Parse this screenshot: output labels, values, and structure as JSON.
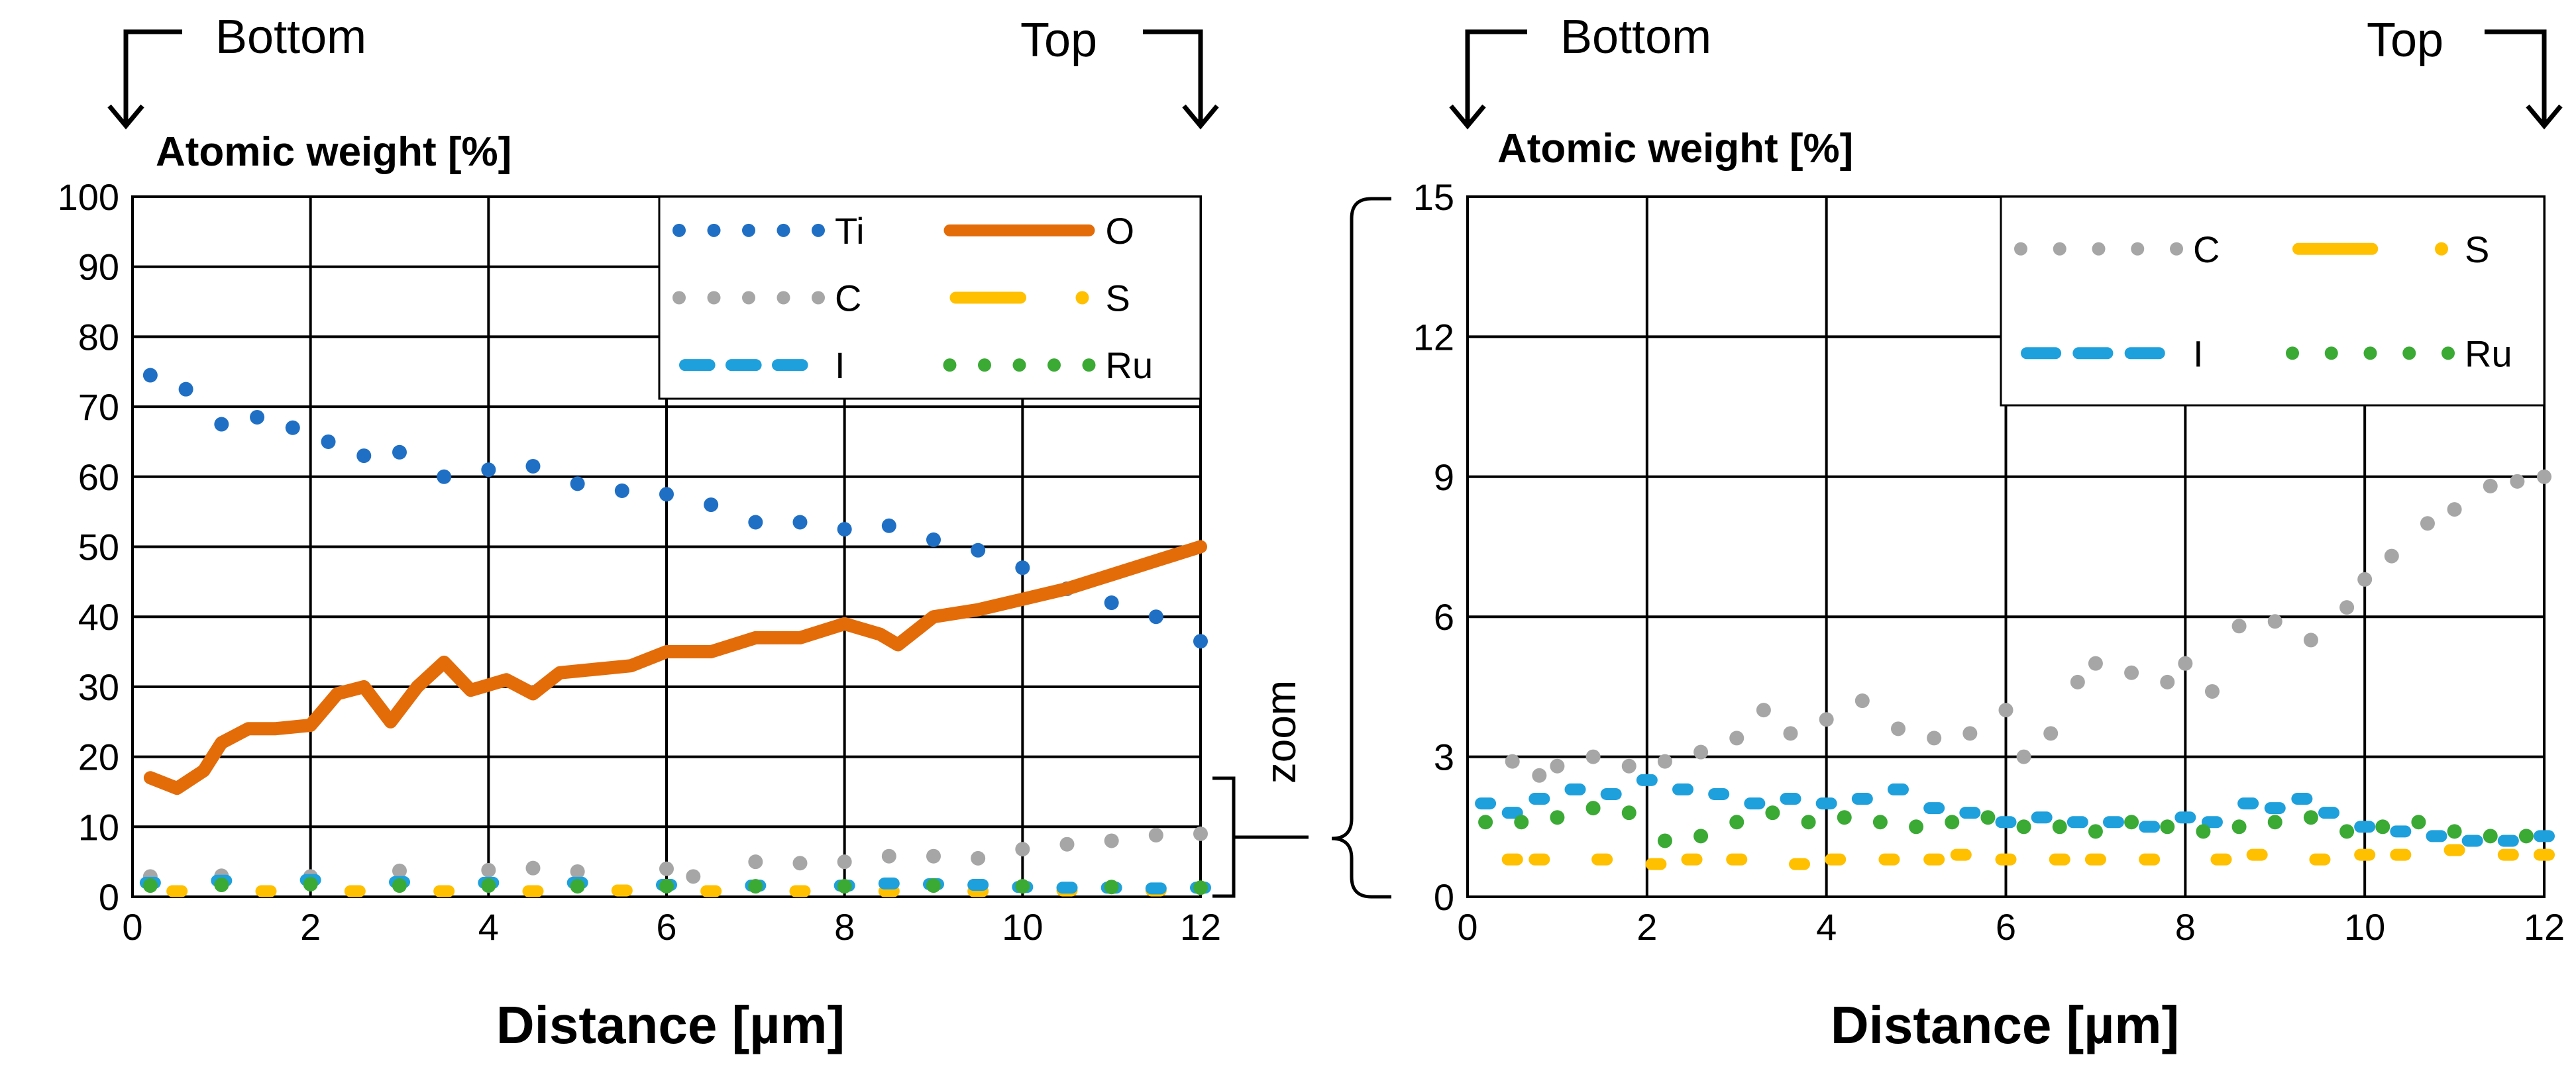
{
  "chart_data": [
    {
      "type": "scatter",
      "title": "",
      "xlabel": "Distance [µm]",
      "ylabel": "Atomic weight [%]",
      "xlim": [
        0,
        12
      ],
      "ylim": [
        0,
        100
      ],
      "x_ticks": [
        "0",
        "2",
        "4",
        "6",
        "8",
        "10",
        "12"
      ],
      "y_ticks": [
        "0",
        "10",
        "20",
        "30",
        "40",
        "50",
        "60",
        "70",
        "80",
        "90",
        "100"
      ],
      "grid": true,
      "legend_position": "top-right",
      "direction_labels": {
        "left": "Bottom",
        "right": "Top"
      },
      "zoom_label": "zoom",
      "series": [
        {
          "name": "Ti",
          "color": "#1f6fc5",
          "style": "dots",
          "points": [
            [
              0.2,
              74.5
            ],
            [
              0.6,
              72.5
            ],
            [
              1.0,
              67.5
            ],
            [
              1.4,
              68.5
            ],
            [
              1.8,
              67
            ],
            [
              2.2,
              65
            ],
            [
              2.6,
              63
            ],
            [
              3.0,
              63.5
            ],
            [
              3.5,
              60
            ],
            [
              4.0,
              61
            ],
            [
              4.5,
              61.5
            ],
            [
              5.0,
              59
            ],
            [
              5.5,
              58
            ],
            [
              6.0,
              57.5
            ],
            [
              6.5,
              56
            ],
            [
              7.0,
              53.5
            ],
            [
              7.5,
              53.5
            ],
            [
              8.0,
              52.5
            ],
            [
              8.5,
              53
            ],
            [
              9.0,
              51
            ],
            [
              9.5,
              49.5
            ],
            [
              10.0,
              47
            ],
            [
              10.5,
              44
            ],
            [
              11.0,
              42
            ],
            [
              11.5,
              40
            ],
            [
              12.0,
              36.5
            ]
          ]
        },
        {
          "name": "O",
          "color": "#e36c09",
          "style": "line",
          "points": [
            [
              0.2,
              17
            ],
            [
              0.5,
              15.5
            ],
            [
              0.8,
              18
            ],
            [
              1.0,
              22
            ],
            [
              1.3,
              24
            ],
            [
              1.6,
              24
            ],
            [
              2.0,
              24.5
            ],
            [
              2.3,
              29
            ],
            [
              2.6,
              30
            ],
            [
              2.9,
              25
            ],
            [
              3.2,
              30
            ],
            [
              3.5,
              33.5
            ],
            [
              3.8,
              29.5
            ],
            [
              4.2,
              31
            ],
            [
              4.5,
              29
            ],
            [
              4.8,
              32
            ],
            [
              5.2,
              32.5
            ],
            [
              5.6,
              33
            ],
            [
              6.0,
              35
            ],
            [
              6.5,
              35
            ],
            [
              7.0,
              37
            ],
            [
              7.5,
              37
            ],
            [
              8.0,
              39
            ],
            [
              8.4,
              37.5
            ],
            [
              8.6,
              36
            ],
            [
              9.0,
              40
            ],
            [
              9.5,
              41
            ],
            [
              10.0,
              42.5
            ],
            [
              10.5,
              44
            ],
            [
              11.0,
              46
            ],
            [
              11.5,
              48
            ],
            [
              12.0,
              50
            ]
          ]
        },
        {
          "name": "C",
          "color": "#a6a6a6",
          "style": "dots",
          "points": [
            [
              0.2,
              2.9
            ],
            [
              1.0,
              3
            ],
            [
              2.0,
              2.9
            ],
            [
              3.0,
              3.7
            ],
            [
              4.0,
              3.8
            ],
            [
              4.5,
              4.1
            ],
            [
              5.0,
              3.6
            ],
            [
              6.0,
              4
            ],
            [
              6.3,
              2.9
            ],
            [
              7.0,
              5
            ],
            [
              7.5,
              4.8
            ],
            [
              8.0,
              5
            ],
            [
              8.5,
              5.8
            ],
            [
              9.0,
              5.8
            ],
            [
              9.5,
              5.5
            ],
            [
              10.0,
              6.8
            ],
            [
              10.5,
              7.5
            ],
            [
              11.0,
              8
            ],
            [
              11.5,
              8.8
            ],
            [
              12.0,
              9
            ]
          ]
        },
        {
          "name": "S",
          "color": "#ffc000",
          "style": "dash-dot",
          "points": [
            [
              0.5,
              0.8
            ],
            [
              1.5,
              0.8
            ],
            [
              2.5,
              0.8
            ],
            [
              3.5,
              0.8
            ],
            [
              4.5,
              0.8
            ],
            [
              5.5,
              0.9
            ],
            [
              6.5,
              0.8
            ],
            [
              7.5,
              0.8
            ],
            [
              8.5,
              0.8
            ],
            [
              9.5,
              0.8
            ],
            [
              10.5,
              0.9
            ],
            [
              11.5,
              0.9
            ]
          ]
        },
        {
          "name": "I",
          "color": "#1ea0dc",
          "style": "dashed",
          "points": [
            [
              0.2,
              2
            ],
            [
              1.0,
              2.3
            ],
            [
              2.0,
              2.4
            ],
            [
              3.0,
              2.1
            ],
            [
              4.0,
              2
            ],
            [
              5.0,
              2
            ],
            [
              6.0,
              1.7
            ],
            [
              7.0,
              1.6
            ],
            [
              8.0,
              1.6
            ],
            [
              8.5,
              1.9
            ],
            [
              9.0,
              1.8
            ],
            [
              9.5,
              1.7
            ],
            [
              10.0,
              1.4
            ],
            [
              10.5,
              1.3
            ],
            [
              11.0,
              1.3
            ],
            [
              11.5,
              1.2
            ],
            [
              12.0,
              1.3
            ]
          ]
        },
        {
          "name": "Ru",
          "color": "#3aaa35",
          "style": "dots",
          "points": [
            [
              0.2,
              1.6
            ],
            [
              1.0,
              1.7
            ],
            [
              2.0,
              1.8
            ],
            [
              3.0,
              1.6
            ],
            [
              4.0,
              1.6
            ],
            [
              5.0,
              1.5
            ],
            [
              6.0,
              1.5
            ],
            [
              7.0,
              1.5
            ],
            [
              8.0,
              1.5
            ],
            [
              9.0,
              1.6
            ],
            [
              10.0,
              1.5
            ],
            [
              11.0,
              1.4
            ],
            [
              12.0,
              1.3
            ]
          ]
        }
      ]
    },
    {
      "type": "scatter",
      "title": "",
      "xlabel": "Distance [µm]",
      "ylabel": "Atomic weight [%]",
      "xlim": [
        0,
        12
      ],
      "ylim": [
        0,
        15
      ],
      "x_ticks": [
        "0",
        "2",
        "4",
        "6",
        "8",
        "10",
        "12"
      ],
      "y_ticks": [
        "0",
        "3",
        "6",
        "9",
        "12",
        "15"
      ],
      "grid": true,
      "legend_position": "top-right",
      "direction_labels": {
        "left": "Bottom",
        "right": "Top"
      },
      "series": [
        {
          "name": "C",
          "color": "#a6a6a6",
          "style": "dots",
          "points": [
            [
              0.5,
              2.9
            ],
            [
              0.8,
              2.6
            ],
            [
              1.0,
              2.8
            ],
            [
              1.4,
              3
            ],
            [
              1.8,
              2.8
            ],
            [
              2.2,
              2.9
            ],
            [
              2.6,
              3.1
            ],
            [
              3.0,
              3.4
            ],
            [
              3.3,
              4
            ],
            [
              3.6,
              3.5
            ],
            [
              4.0,
              3.8
            ],
            [
              4.4,
              4.2
            ],
            [
              4.8,
              3.6
            ],
            [
              5.2,
              3.4
            ],
            [
              5.6,
              3.5
            ],
            [
              6.0,
              4
            ],
            [
              6.2,
              3
            ],
            [
              6.5,
              3.5
            ],
            [
              6.8,
              4.6
            ],
            [
              7.0,
              5
            ],
            [
              7.4,
              4.8
            ],
            [
              7.8,
              4.6
            ],
            [
              8.0,
              5
            ],
            [
              8.3,
              4.4
            ],
            [
              8.6,
              5.8
            ],
            [
              9.0,
              5.9
            ],
            [
              9.4,
              5.5
            ],
            [
              9.8,
              6.2
            ],
            [
              10.0,
              6.8
            ],
            [
              10.3,
              7.3
            ],
            [
              10.7,
              8
            ],
            [
              11.0,
              8.3
            ],
            [
              11.4,
              8.8
            ],
            [
              11.7,
              8.9
            ],
            [
              12.0,
              9
            ]
          ]
        },
        {
          "name": "S",
          "color": "#ffc000",
          "style": "dash-dot",
          "points": [
            [
              0.5,
              0.8
            ],
            [
              0.8,
              0.8
            ],
            [
              1.5,
              0.8
            ],
            [
              2.1,
              0.7
            ],
            [
              2.5,
              0.8
            ],
            [
              3.0,
              0.8
            ],
            [
              3.7,
              0.7
            ],
            [
              4.1,
              0.8
            ],
            [
              4.7,
              0.8
            ],
            [
              5.2,
              0.8
            ],
            [
              5.5,
              0.9
            ],
            [
              6.0,
              0.8
            ],
            [
              6.6,
              0.8
            ],
            [
              7.0,
              0.8
            ],
            [
              7.6,
              0.8
            ],
            [
              8.4,
              0.8
            ],
            [
              8.8,
              0.9
            ],
            [
              9.5,
              0.8
            ],
            [
              10.0,
              0.9
            ],
            [
              10.4,
              0.9
            ],
            [
              11.0,
              1
            ],
            [
              11.6,
              0.9
            ],
            [
              12.0,
              0.9
            ]
          ]
        },
        {
          "name": "I",
          "color": "#1ea0dc",
          "style": "dashed",
          "points": [
            [
              0.2,
              2
            ],
            [
              0.5,
              1.8
            ],
            [
              0.8,
              2.1
            ],
            [
              1.2,
              2.3
            ],
            [
              1.6,
              2.2
            ],
            [
              2.0,
              2.5
            ],
            [
              2.4,
              2.3
            ],
            [
              2.8,
              2.2
            ],
            [
              3.2,
              2
            ],
            [
              3.6,
              2.1
            ],
            [
              4.0,
              2
            ],
            [
              4.4,
              2.1
            ],
            [
              4.8,
              2.3
            ],
            [
              5.2,
              1.9
            ],
            [
              5.6,
              1.8
            ],
            [
              6.0,
              1.6
            ],
            [
              6.4,
              1.7
            ],
            [
              6.8,
              1.6
            ],
            [
              7.2,
              1.6
            ],
            [
              7.6,
              1.5
            ],
            [
              8.0,
              1.7
            ],
            [
              8.3,
              1.6
            ],
            [
              8.7,
              2
            ],
            [
              9.0,
              1.9
            ],
            [
              9.3,
              2.1
            ],
            [
              9.6,
              1.8
            ],
            [
              10.0,
              1.5
            ],
            [
              10.4,
              1.4
            ],
            [
              10.8,
              1.3
            ],
            [
              11.2,
              1.2
            ],
            [
              11.6,
              1.2
            ],
            [
              12.0,
              1.3
            ]
          ]
        },
        {
          "name": "Ru",
          "color": "#3aaa35",
          "style": "dots",
          "points": [
            [
              0.2,
              1.6
            ],
            [
              0.6,
              1.6
            ],
            [
              1.0,
              1.7
            ],
            [
              1.4,
              1.9
            ],
            [
              1.8,
              1.8
            ],
            [
              2.2,
              1.2
            ],
            [
              2.6,
              1.3
            ],
            [
              3.0,
              1.6
            ],
            [
              3.4,
              1.8
            ],
            [
              3.8,
              1.6
            ],
            [
              4.2,
              1.7
            ],
            [
              4.6,
              1.6
            ],
            [
              5.0,
              1.5
            ],
            [
              5.4,
              1.6
            ],
            [
              5.8,
              1.7
            ],
            [
              6.2,
              1.5
            ],
            [
              6.6,
              1.5
            ],
            [
              7.0,
              1.4
            ],
            [
              7.4,
              1.6
            ],
            [
              7.8,
              1.5
            ],
            [
              8.2,
              1.4
            ],
            [
              8.6,
              1.5
            ],
            [
              9.0,
              1.6
            ],
            [
              9.4,
              1.7
            ],
            [
              9.8,
              1.4
            ],
            [
              10.2,
              1.5
            ],
            [
              10.6,
              1.6
            ],
            [
              11.0,
              1.4
            ],
            [
              11.4,
              1.3
            ],
            [
              11.8,
              1.3
            ]
          ]
        }
      ]
    }
  ]
}
